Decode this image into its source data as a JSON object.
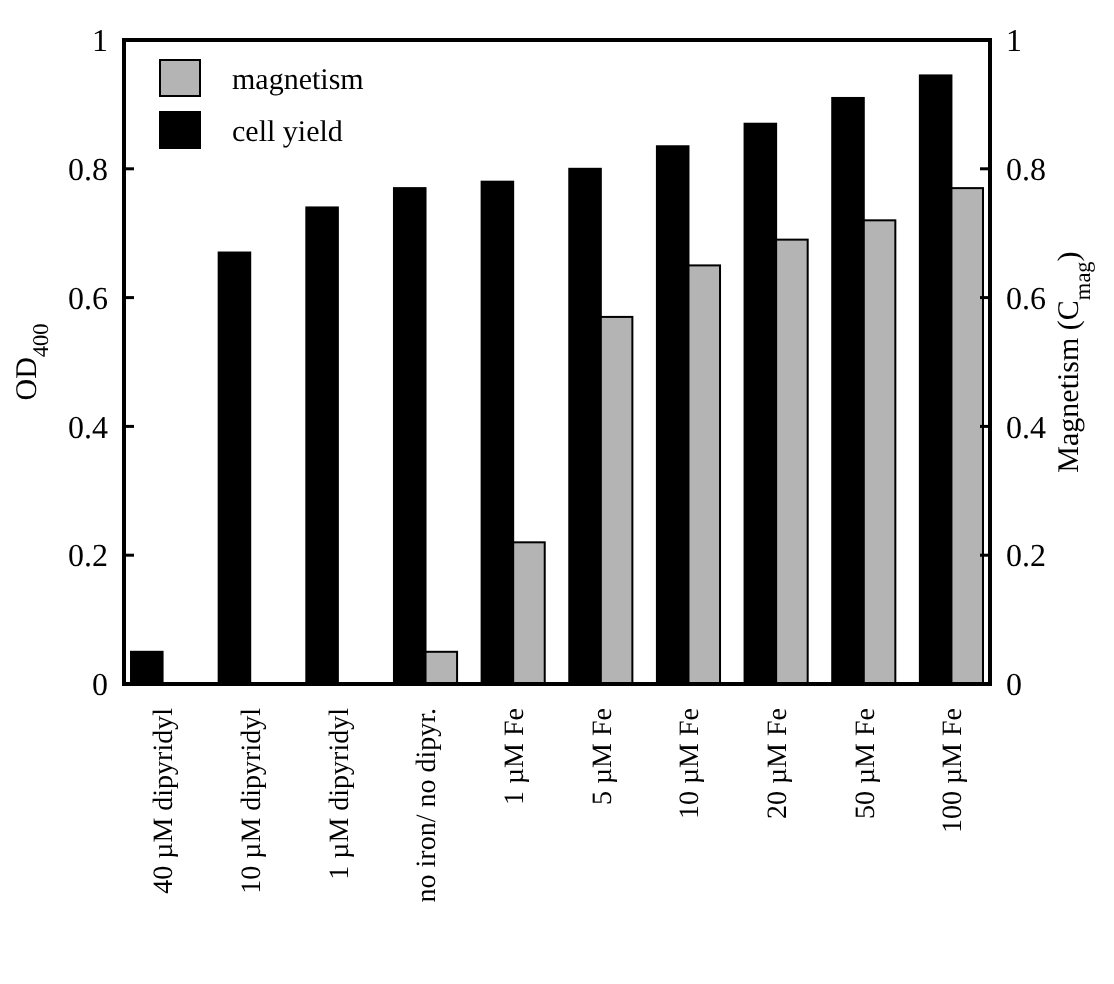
{
  "chart_data": {
    "type": "bar",
    "categories": [
      "40 µM dipyridyl",
      "10 µM dipyridyl",
      "1 µM dipyridyl",
      "no iron/ no dipyr.",
      "1 µM Fe",
      "5 µM Fe",
      "10 µM Fe",
      "20 µM Fe",
      "50 µM Fe",
      "100 µM Fe"
    ],
    "series": [
      {
        "name": "cell yield",
        "color": "#000000",
        "values": [
          0.05,
          0.67,
          0.74,
          0.77,
          0.78,
          0.8,
          0.835,
          0.87,
          0.91,
          0.945
        ]
      },
      {
        "name": "magnetism",
        "color": "#b4b4b4",
        "axis": "y2",
        "values": [
          null,
          null,
          null,
          0.05,
          0.22,
          0.57,
          0.65,
          0.69,
          0.72,
          0.77
        ]
      }
    ],
    "ylabel": "OD$_{400}$",
    "y2label": "Magnetism (C$_{mag}$)",
    "ylim": [
      0,
      1
    ],
    "yticks": [
      0,
      0.2,
      0.4,
      0.6,
      0.8,
      1
    ],
    "y2lim": [
      0,
      1
    ],
    "y2ticks": [
      0,
      0.2,
      0.4,
      0.6,
      0.8,
      1
    ],
    "grid": false,
    "legend": "top left"
  }
}
